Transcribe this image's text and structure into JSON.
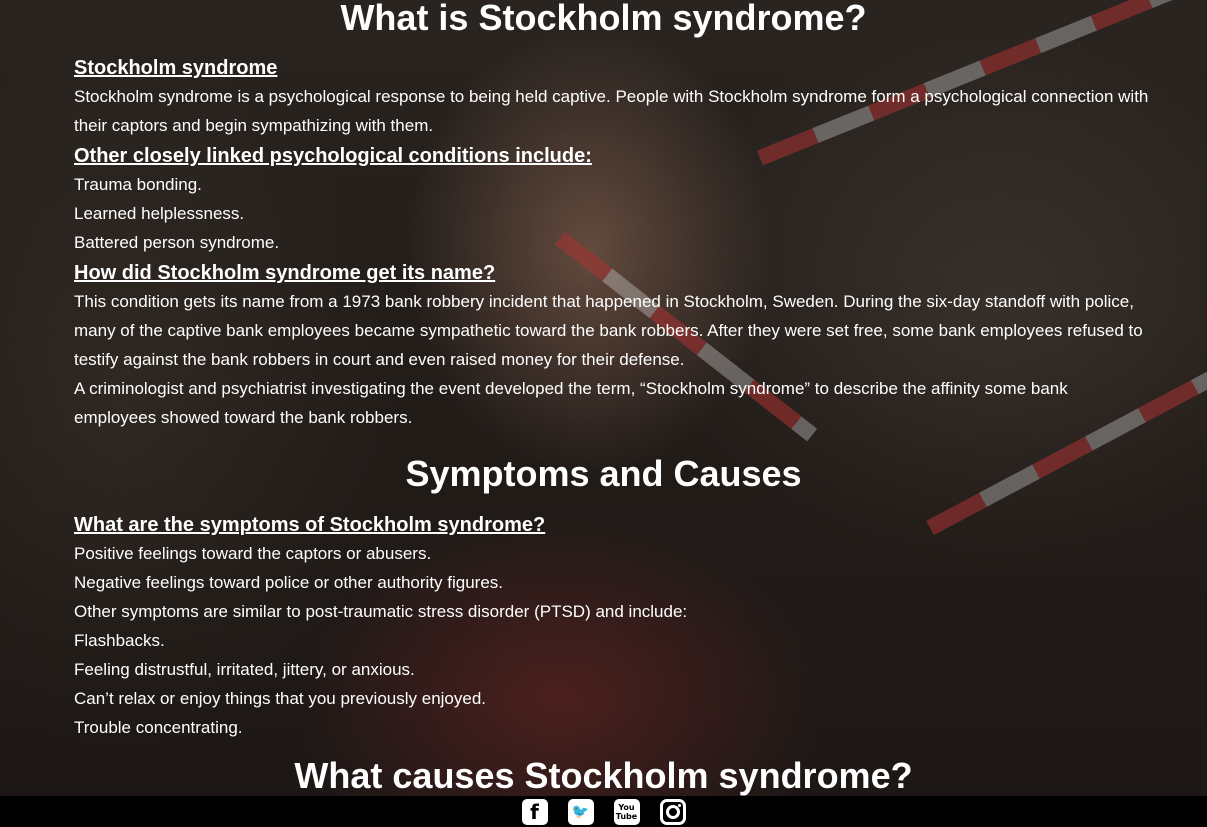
{
  "section1": {
    "title": "What is Stockholm syndrome?",
    "intro_heading": "Stockholm syndrome",
    "intro_text": "Stockholm syndrome is a psychological response to being held captive. People with Stockholm syndrome form a psychological connection with their captors and begin sympathizing with them.",
    "conditions_heading": "Other closely linked psychological conditions include:",
    "conditions": [
      "Trauma bonding.",
      "Learned helplessness.",
      "Battered person syndrome."
    ],
    "name_heading": "How did Stockholm syndrome get its name?",
    "name_text_1": "This condition gets its name from a 1973 bank robbery incident that happened in Stockholm, Sweden. During the six-day standoff with police, many of the captive bank employees became sympathetic toward the bank robbers. After they were set free, some bank employees refused to testify against the bank robbers in court and even raised money for their defense.",
    "name_text_2": "A criminologist and psychiatrist investigating the event developed the term, “Stockholm syndrome” to describe the affinity some bank employees showed toward the bank robbers."
  },
  "section2": {
    "title": "Symptoms and Causes",
    "symptoms_heading": "What are the symptoms of Stockholm syndrome?",
    "symptoms": [
      "Positive feelings toward the captors or abusers.",
      "Negative feelings toward police or other authority figures.",
      "Other symptoms are similar to post-traumatic stress disorder (PTSD) and include:",
      "Flashbacks.",
      "Feeling distrustful, irritated, jittery, or anxious.",
      "Can’t relax or enjoy things that you previously enjoyed.",
      "Trouble concentrating."
    ]
  },
  "section3": {
    "title": "What causes Stockholm syndrome?"
  },
  "footer": {
    "facebook_glyph": "f",
    "twitter_glyph": "🐦",
    "youtube_top": "You",
    "youtube_bottom": "Tube",
    "icons": [
      "facebook-icon",
      "twitter-icon",
      "youtube-icon",
      "instagram-icon"
    ]
  }
}
